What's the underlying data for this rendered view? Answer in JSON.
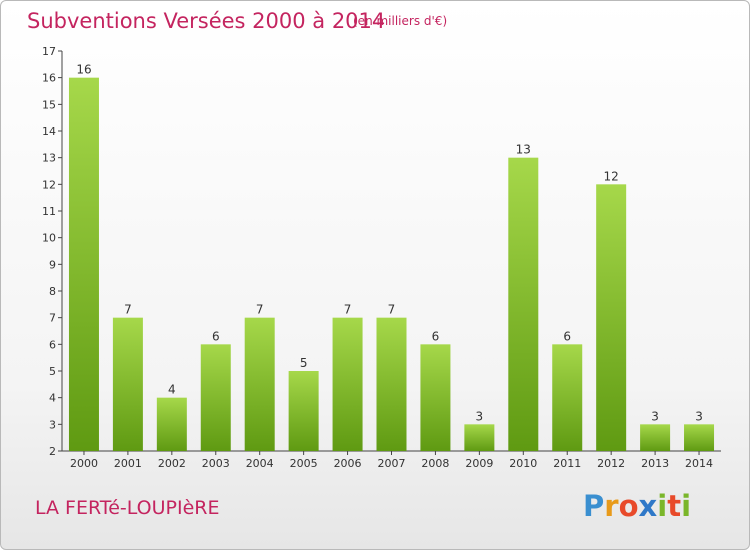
{
  "header": {
    "title": "Subventions Versées 2000 à 2014",
    "subtitle": "(en milliers d'€)"
  },
  "footer": {
    "commune": "LA FERTé-LOUPIèRE",
    "logo_letters": [
      "P",
      "r",
      "o",
      "x",
      "i",
      "t",
      "i"
    ],
    "logo_colors": [
      "#3a8fd0",
      "#e89a1a",
      "#e84a2a",
      "#2f78c8",
      "#7ab62a",
      "#e84a2a",
      "#7ab62a"
    ]
  },
  "colors": {
    "bar_light": "#a6d84a",
    "bar_dark": "#5f9a12",
    "text": "#c4245f",
    "axis": "#444444"
  },
  "chart_data": {
    "type": "bar",
    "categories": [
      "2000",
      "2001",
      "2002",
      "2003",
      "2004",
      "2005",
      "2006",
      "2007",
      "2008",
      "2009",
      "2010",
      "2011",
      "2012",
      "2013",
      "2014"
    ],
    "values": [
      16,
      7,
      4,
      6,
      7,
      5,
      7,
      7,
      6,
      3,
      13,
      6,
      12,
      3,
      3
    ],
    "ylim": [
      2,
      17
    ],
    "yticks": [
      2,
      3,
      4,
      5,
      6,
      7,
      8,
      9,
      10,
      11,
      12,
      13,
      14,
      15,
      16,
      17
    ],
    "title": "Subventions Versées 2000 à 2014",
    "xlabel": "",
    "ylabel": "",
    "grid": false,
    "data_labels": true
  }
}
